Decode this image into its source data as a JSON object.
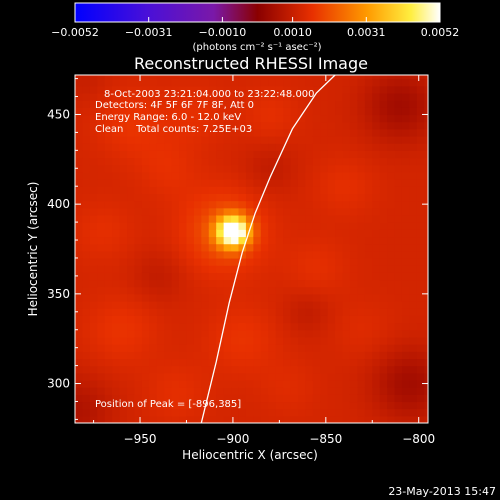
{
  "chart_data": {
    "type": "heatmap",
    "title": "Reconstructed RHESSI Image",
    "xlabel": "Heliocentric X (arcsec)",
    "ylabel": "Heliocentric Y (arcsec)",
    "xlim": [
      -985,
      -795
    ],
    "ylim": [
      278,
      472
    ],
    "x_ticks": [
      -950,
      -900,
      -850,
      -800
    ],
    "y_ticks": [
      300,
      350,
      400,
      450
    ],
    "x_tick_labels": [
      "−950",
      "−900",
      "−850",
      "−800"
    ],
    "y_tick_labels": [
      "300",
      "350",
      "400",
      "450"
    ],
    "colorbar": {
      "ticks": [
        -0.0052,
        -0.0031,
        -0.001,
        0.001,
        0.0031,
        0.0052
      ],
      "tick_labels": [
        "−0.0052",
        "−0.0031",
        "−0.0010",
        "0.0010",
        "0.0031",
        "0.0052"
      ],
      "label": "(photons cm⁻² s⁻¹ asec⁻²)",
      "colormap": "blue-purple-red-yellow-white"
    },
    "annotations": [
      "8-Oct-2003 23:21:04.000 to 23:22:48.000",
      "Detectors: 4F 5F 6F 7F 8F, Att 0",
      "Energy Range: 6.0 - 12.0 keV",
      "Clean    Total counts: 7.25E+03",
      "Position of Peak = [-896,385]"
    ],
    "peak": {
      "x": -896,
      "y": 385,
      "value": 0.0052
    },
    "background_level": 0.0012,
    "blobs": [
      {
        "x": -900,
        "y": 385,
        "sigma": 6,
        "amp": 0.0045
      },
      {
        "x": -905,
        "y": 385,
        "sigma": 16,
        "amp": 0.0009
      },
      {
        "x": -955,
        "y": 445,
        "sigma": 14,
        "amp": 0.0004
      },
      {
        "x": -920,
        "y": 450,
        "sigma": 12,
        "amp": 0.0003
      },
      {
        "x": -935,
        "y": 420,
        "sigma": 12,
        "amp": 0.0003
      },
      {
        "x": -960,
        "y": 330,
        "sigma": 14,
        "amp": 0.0004
      },
      {
        "x": -895,
        "y": 325,
        "sigma": 14,
        "amp": 0.0004
      },
      {
        "x": -930,
        "y": 295,
        "sigma": 12,
        "amp": 0.0003
      },
      {
        "x": -840,
        "y": 410,
        "sigma": 12,
        "amp": 0.0003
      },
      {
        "x": -855,
        "y": 365,
        "sigma": 12,
        "amp": 0.0003
      },
      {
        "x": -880,
        "y": 450,
        "sigma": 11,
        "amp": 0.0003
      },
      {
        "x": -830,
        "y": 330,
        "sigma": 12,
        "amp": 0.0002
      },
      {
        "x": -870,
        "y": 298,
        "sigma": 11,
        "amp": 0.0002
      },
      {
        "x": -970,
        "y": 385,
        "sigma": 12,
        "amp": 0.0003
      },
      {
        "x": -940,
        "y": 360,
        "sigma": 10,
        "amp": -0.0003
      },
      {
        "x": -880,
        "y": 420,
        "sigma": 10,
        "amp": -0.0003
      },
      {
        "x": -860,
        "y": 340,
        "sigma": 9,
        "amp": -0.0003
      },
      {
        "x": -810,
        "y": 455,
        "sigma": 14,
        "amp": -0.0008
      },
      {
        "x": -805,
        "y": 300,
        "sigma": 14,
        "amp": -0.0008
      },
      {
        "x": -985,
        "y": 285,
        "sigma": 14,
        "amp": -0.0006
      },
      {
        "x": -980,
        "y": 470,
        "sigma": 10,
        "amp": -0.0002
      }
    ],
    "limb_curve": {
      "x": [
        -917,
        -909,
        -902,
        -895,
        -888,
        -880,
        -868,
        -855,
        -845
      ],
      "y": [
        278,
        312,
        345,
        373,
        395,
        415,
        442,
        462,
        472
      ]
    }
  },
  "footer": {
    "date": "23-May-2013 15:47"
  }
}
